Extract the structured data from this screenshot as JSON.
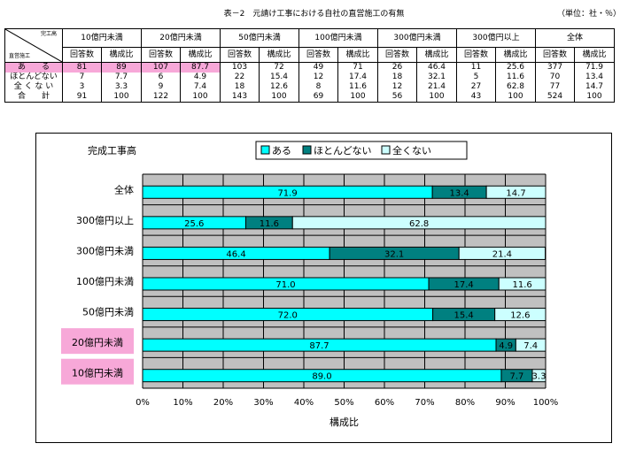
{
  "title": "表－2　元請け工事における自社の直営施工の有無",
  "unit": "（単位：社・％）",
  "table": {
    "corner_top": "完工高",
    "corner_bottom": "直営施工",
    "groups": [
      "10億円未満",
      "20億円未満",
      "50億円未満",
      "100億円未満",
      "300億円未満",
      "300億円以上",
      "全体"
    ],
    "sub_a": "回答数",
    "sub_b": "構成比",
    "rows": [
      {
        "label": "あ　　る",
        "cells": [
          "81",
          "89",
          "107",
          "87.7",
          "103",
          "72",
          "49",
          "71",
          "26",
          "46.4",
          "11",
          "25.6",
          "377",
          "71.9"
        ]
      },
      {
        "label": "ほとんどない",
        "cells": [
          "7",
          "7.7",
          "6",
          "4.9",
          "22",
          "15.4",
          "12",
          "17.4",
          "18",
          "32.1",
          "5",
          "11.6",
          "70",
          "13.4"
        ]
      },
      {
        "label": "全 く な い",
        "cells": [
          "3",
          "3.3",
          "9",
          "7.4",
          "18",
          "12.6",
          "8",
          "11.6",
          "12",
          "21.4",
          "27",
          "62.8",
          "77",
          "14.7"
        ]
      },
      {
        "label": "合　　計",
        "cells": [
          "91",
          "100",
          "122",
          "100",
          "143",
          "100",
          "69",
          "100",
          "56",
          "100",
          "43",
          "100",
          "524",
          "100"
        ]
      }
    ]
  },
  "chart_data": {
    "type": "bar",
    "orientation": "horizontal-stacked-100",
    "title": "完成工事高",
    "xlabel": "構成比",
    "xlim": [
      0,
      100
    ],
    "xticks": [
      "0%",
      "10%",
      "20%",
      "30%",
      "40%",
      "50%",
      "60%",
      "70%",
      "80%",
      "90%",
      "100%"
    ],
    "categories": [
      "全体",
      "300億円以上",
      "300億円未満",
      "100億円未満",
      "50億円未満",
      "20億円未満",
      "10億円未満"
    ],
    "highlight_categories": [
      "20億円未満",
      "10億円未満"
    ],
    "series": [
      {
        "name": "ある",
        "color": "#00ffff",
        "values": [
          71.9,
          25.6,
          46.4,
          71.0,
          72.0,
          87.7,
          89.0
        ],
        "labels": [
          "71.9",
          "25.6",
          "46.4",
          "71.0",
          "72.0",
          "87.7",
          "89.0"
        ]
      },
      {
        "name": "ほとんどない",
        "color": "#008080",
        "values": [
          13.4,
          11.6,
          32.1,
          17.4,
          15.4,
          4.9,
          7.7
        ],
        "labels": [
          "13.4",
          "11.6",
          "32.1",
          "17.4",
          "15.4",
          "4.9",
          "7.7"
        ]
      },
      {
        "name": "全くない",
        "color": "#ccffff",
        "values": [
          14.7,
          62.8,
          21.4,
          11.6,
          12.6,
          7.4,
          3.3
        ],
        "labels": [
          "14.7",
          "62.8",
          "21.4",
          "11.6",
          "12.6",
          "7.4",
          "3.3"
        ]
      }
    ],
    "legend": "top"
  }
}
